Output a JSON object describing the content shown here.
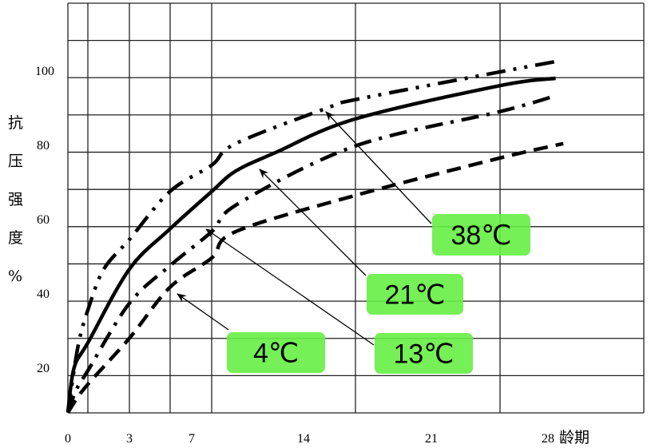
{
  "chart_data": {
    "type": "line",
    "title": "",
    "xlabel": "龄期",
    "ylabel_chars": [
      "抗",
      "压",
      "强",
      "度",
      "%"
    ],
    "x_ticks": [
      0,
      3,
      7,
      14,
      21,
      28
    ],
    "y_ticks": [
      20,
      40,
      60,
      80,
      100
    ],
    "ylim": [
      10,
      120
    ],
    "grid": true,
    "series": [
      {
        "name": "38℃",
        "style": "dash-dot-dot",
        "points": [
          [
            0,
            10
          ],
          [
            0.5,
            28
          ],
          [
            1,
            38
          ],
          [
            1.75,
            48.6
          ],
          [
            3,
            56.6
          ],
          [
            5.6,
            69.5
          ],
          [
            8.25,
            76.6
          ],
          [
            9.75,
            82.4
          ],
          [
            15.3,
            92
          ],
          [
            16.8,
            94.2
          ],
          [
            25.1,
            101.7
          ],
          [
            28.4,
            104.5
          ]
        ]
      },
      {
        "name": "21℃",
        "style": "solid",
        "points": [
          [
            0,
            10
          ],
          [
            0.3,
            22
          ],
          [
            1,
            29
          ],
          [
            3,
            48.6
          ],
          [
            5.6,
            59.4
          ],
          [
            8.25,
            69.5
          ],
          [
            9.75,
            75
          ],
          [
            12.25,
            80
          ],
          [
            16.8,
            89
          ],
          [
            25.1,
            98
          ],
          [
            28.4,
            100
          ]
        ]
      },
      {
        "name": "13℃",
        "style": "dash-dot",
        "points": [
          [
            0,
            10
          ],
          [
            0.4,
            16
          ],
          [
            1,
            21.5
          ],
          [
            3,
            39.4
          ],
          [
            5.6,
            49.5
          ],
          [
            8.25,
            58.7
          ],
          [
            9.9,
            66.2
          ],
          [
            16.8,
            81.7
          ],
          [
            25.1,
            91
          ],
          [
            28.4,
            95.3
          ]
        ]
      },
      {
        "name": "4℃",
        "style": "dashed",
        "points": [
          [
            0,
            10
          ],
          [
            0.85,
            16.8
          ],
          [
            3,
            30
          ],
          [
            5.6,
            43.7
          ],
          [
            8.25,
            51.6
          ],
          [
            9.75,
            58.7
          ],
          [
            16.8,
            68.4
          ],
          [
            25.1,
            78.5
          ],
          [
            28.8,
            82.4
          ]
        ]
      }
    ],
    "label_color": "#66ee44"
  }
}
